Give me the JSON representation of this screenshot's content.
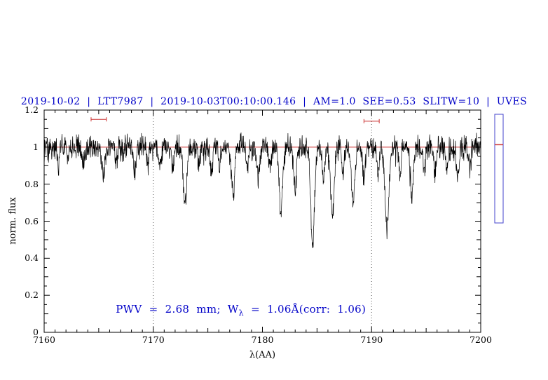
{
  "title": "2019-10-02  |  LTT7987  |  2019-10-03T00:10:00.146  |  AM=1.0  SEE=0.53  SLITW=10  |  UVES",
  "annotation": {
    "part1": "PWV  =  2.68  mm;  W",
    "sub": "λ",
    "part2": "  =  1.06Å(corr:  1.06)"
  },
  "chart_data": {
    "type": "line",
    "title": "2019-10-02 | LTT7987 | 2019-10-03T00:10:00.146 | AM=1.0 SEE=0.53 SLITW=10 | UVES",
    "xlabel": "λ(AA)",
    "ylabel": "norm. flux",
    "xlim": [
      7160,
      7200
    ],
    "ylim": [
      0,
      1.2
    ],
    "x_ticks": [
      7160,
      7170,
      7180,
      7190,
      7200
    ],
    "y_ticks": [
      0,
      0.2,
      0.4,
      0.6,
      0.8,
      1,
      1.2
    ],
    "x_tick_labels": [
      "7160",
      "7170",
      "7180",
      "7190",
      "7200"
    ],
    "y_tick_labels": [
      "0",
      "0.2",
      "0.4",
      "0.6",
      "0.8",
      "1",
      "1.2"
    ],
    "grid": false,
    "legend": "none",
    "baseline": 1.0,
    "noise_sigma": 0.032,
    "reference_line": {
      "y": 1.0,
      "color": "#cc3333"
    },
    "dotted_lines_x": [
      7170,
      7190
    ],
    "absorption_lines": [
      [
        7161.3,
        0.08,
        0.1
      ],
      [
        7162.2,
        0.07,
        0.1
      ],
      [
        7163.6,
        0.1,
        0.12
      ],
      [
        7165.4,
        0.13,
        0.14
      ],
      [
        7166.6,
        0.08,
        0.1
      ],
      [
        7168.3,
        0.12,
        0.12
      ],
      [
        7169.5,
        0.08,
        0.1
      ],
      [
        7170.6,
        0.1,
        0.12
      ],
      [
        7171.8,
        0.12,
        0.1
      ],
      [
        7172.9,
        0.3,
        0.16
      ],
      [
        7174.2,
        0.1,
        0.1
      ],
      [
        7175.3,
        0.12,
        0.12
      ],
      [
        7176.1,
        0.1,
        0.1
      ],
      [
        7177.3,
        0.26,
        0.15
      ],
      [
        7178.6,
        0.12,
        0.1
      ],
      [
        7179.6,
        0.16,
        0.12
      ],
      [
        7180.7,
        0.12,
        0.1
      ],
      [
        7181.7,
        0.34,
        0.16
      ],
      [
        7183.0,
        0.22,
        0.13
      ],
      [
        7184.6,
        0.52,
        0.18
      ],
      [
        7185.6,
        0.18,
        0.1
      ],
      [
        7186.4,
        0.38,
        0.16
      ],
      [
        7187.4,
        0.15,
        0.1
      ],
      [
        7188.3,
        0.3,
        0.15
      ],
      [
        7189.3,
        0.18,
        0.12
      ],
      [
        7190.6,
        0.15,
        0.1
      ],
      [
        7191.4,
        0.43,
        0.18
      ],
      [
        7192.6,
        0.15,
        0.1
      ],
      [
        7193.7,
        0.26,
        0.14
      ],
      [
        7194.8,
        0.12,
        0.1
      ],
      [
        7195.8,
        0.14,
        0.12
      ],
      [
        7196.9,
        0.12,
        0.1
      ],
      [
        7197.9,
        0.16,
        0.12
      ],
      [
        7199.0,
        0.1,
        0.1
      ]
    ],
    "markers": [
      {
        "x": 7165.0,
        "halfwidth": 0.7,
        "y": 1.15
      },
      {
        "x": 7190.0,
        "halfwidth": 0.7,
        "y": 1.14
      }
    ],
    "side_gauge": {
      "color": "#4444cc",
      "red_line_frac": 0.28
    }
  }
}
